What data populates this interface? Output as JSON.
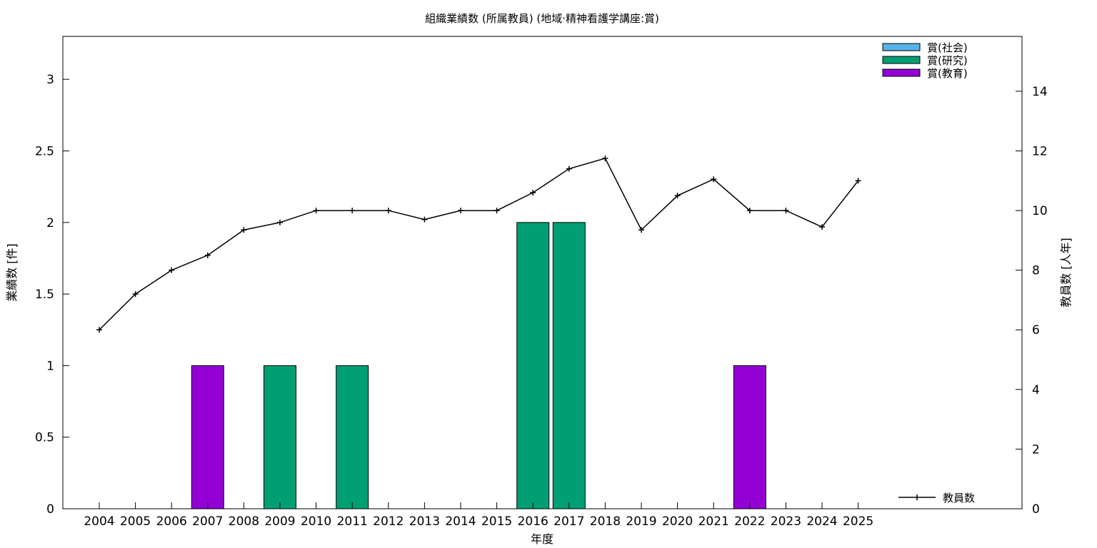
{
  "chart_data": {
    "type": "bar",
    "title": "組織業績数 (所属教員) (地域·精神看護学講座:賞)",
    "xlabel": "年度",
    "ylabel": "業績数 [件]",
    "y2label": "教員数 [人年]",
    "categories": [
      "2004",
      "2005",
      "2006",
      "2007",
      "2008",
      "2009",
      "2010",
      "2011",
      "2012",
      "2013",
      "2014",
      "2015",
      "2016",
      "2017",
      "2018",
      "2019",
      "2020",
      "2021",
      "2022",
      "2023",
      "2024",
      "2025"
    ],
    "ylim": [
      0,
      3.3
    ],
    "y_ticks": [
      "0",
      "0.5",
      "1",
      "1.5",
      "2",
      "2.5",
      "3"
    ],
    "y2lim": [
      0,
      15.84
    ],
    "y2_ticks": [
      "0",
      "2",
      "4",
      "6",
      "8",
      "10",
      "12",
      "14"
    ],
    "grid": false,
    "legend_placement": "top-right",
    "series": [
      {
        "name": "賞(社会)",
        "color": "#56b4e9",
        "values": [
          0,
          0,
          0,
          0,
          0,
          0,
          0,
          0,
          0,
          0,
          0,
          0,
          0,
          0,
          0,
          0,
          0,
          0,
          0,
          0,
          0,
          0
        ]
      },
      {
        "name": "賞(研究)",
        "color": "#009e73",
        "values": [
          0,
          0,
          0,
          0,
          0,
          1,
          0,
          1,
          0,
          0,
          0,
          0,
          2,
          2,
          0,
          0,
          0,
          0,
          0,
          0,
          0,
          0
        ]
      },
      {
        "name": "賞(教育)",
        "color": "#9400d3",
        "values": [
          0,
          0,
          0,
          1,
          0,
          0,
          0,
          0,
          0,
          0,
          0,
          0,
          0,
          0,
          0,
          0,
          0,
          0,
          1,
          0,
          0,
          0
        ]
      }
    ],
    "line_series": {
      "name": "教員数",
      "axis": "y2",
      "color": "#000000",
      "values": [
        6.0,
        7.2,
        8.0,
        8.5,
        9.35,
        9.6,
        10.0,
        10.0,
        10.0,
        9.7,
        10.0,
        10.0,
        10.6,
        11.4,
        11.75,
        9.35,
        10.5,
        11.05,
        10.0,
        10.0,
        9.45,
        11.0
      ]
    }
  }
}
